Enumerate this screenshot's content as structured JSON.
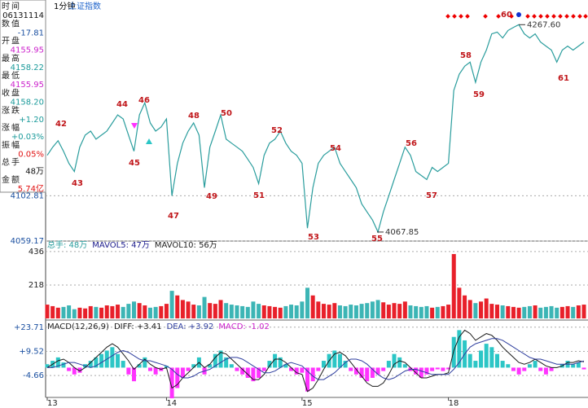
{
  "header": {
    "period": "1分钟",
    "symbol": "上证指数"
  },
  "info_panel": {
    "rows": [
      {
        "label": "时间",
        "value": "06131114"
      },
      {
        "label": "数值",
        "value": "-17.81"
      },
      {
        "label": "开盘",
        "value": "4155.95"
      },
      {
        "label": "最高",
        "value": "4158.22"
      },
      {
        "label": "最低",
        "value": "4155.95"
      },
      {
        "label": "收盘",
        "value": "4158.20"
      },
      {
        "label": "涨跌",
        "value": "+1.20"
      },
      {
        "label": "涨幅",
        "value": "+0.03%"
      },
      {
        "label": "振幅",
        "value": "0.05%"
      },
      {
        "label": "总手",
        "value": "48万"
      },
      {
        "label": "金额",
        "value": "5.74亿"
      }
    ]
  },
  "chart_data": [
    {
      "type": "line",
      "color": "#2a9d9d",
      "values": [
        4141.8,
        4149.6,
        4155.8,
        4145.7,
        4134.0,
        4126.2,
        4149.6,
        4161.2,
        4165.1,
        4157.3,
        4161.2,
        4165.1,
        4172.9,
        4180.7,
        4176.8,
        4161.2,
        4145.7,
        4180.7,
        4192.4,
        4172.9,
        4165.1,
        4169.0,
        4176.8,
        4102.8,
        4134.0,
        4153.5,
        4165.1,
        4172.9,
        4161.2,
        4110.6,
        4149.6,
        4165.1,
        4180.7,
        4157.3,
        4153.5,
        4149.6,
        4145.7,
        4137.9,
        4130.1,
        4114.5,
        4141.8,
        4153.5,
        4157.3,
        4165.1,
        4153.5,
        4145.7,
        4141.8,
        4134.0,
        4071.6,
        4110.6,
        4134.0,
        4141.8,
        4145.7,
        4149.6,
        4134.0,
        4126.2,
        4118.4,
        4110.6,
        4095.0,
        4087.2,
        4079.4,
        4067.85,
        4087.2,
        4102.8,
        4118.4,
        4134.0,
        4149.6,
        4141.8,
        4126.2,
        4122.3,
        4118.4,
        4130.1,
        4126.2,
        4130.1,
        4134.0,
        4204.2,
        4219.8,
        4227.6,
        4231.5,
        4212.0,
        4231.5,
        4243.1,
        4258.7,
        4260.5,
        4254.8,
        4262.0,
        4265.0,
        4267.6,
        4258.7,
        4254.8,
        4258.7,
        4250.9,
        4247.0,
        4243.1,
        4231.5,
        4243.1,
        4247.0,
        4243.1,
        4247.0,
        4250.9
      ],
      "annotations": [
        "42",
        "43",
        "44",
        "45",
        "46",
        "47",
        "48",
        "49",
        "50",
        "51",
        "52",
        "53",
        "54",
        "55",
        "56",
        "57",
        "58",
        "59",
        "60",
        "61"
      ],
      "extremes": [
        {
          "value": 4267.6,
          "label": "4267.60"
        },
        4067.85
      ],
      "ylim": [
        4059.17,
        4289.8
      ],
      "yticks": [
        4102.81,
        4059.17
      ],
      "xlim": [
        0,
        99
      ],
      "grid": true
    },
    {
      "type": "bar",
      "up_color": "#e8202a",
      "down_color": "#3cb5b5",
      "legend": [
        "总手: 48万",
        "MAVOL5: 47万",
        "MAVOL10: 56万"
      ],
      "values": [
        90,
        80,
        70,
        75,
        85,
        60,
        70,
        65,
        80,
        75,
        70,
        85,
        80,
        90,
        75,
        95,
        110,
        100,
        85,
        70,
        75,
        80,
        95,
        180,
        150,
        120,
        110,
        90,
        85,
        140,
        100,
        95,
        120,
        100,
        90,
        85,
        80,
        75,
        110,
        95,
        85,
        80,
        75,
        70,
        80,
        90,
        85,
        110,
        200,
        150,
        110,
        95,
        90,
        100,
        85,
        80,
        90,
        85,
        95,
        100,
        110,
        120,
        105,
        90,
        100,
        95,
        110,
        85,
        80,
        75,
        80,
        70,
        75,
        80,
        90,
        420,
        200,
        150,
        120,
        100,
        110,
        130,
        95,
        90,
        85,
        80,
        75,
        70,
        75,
        80,
        85,
        70,
        75,
        80,
        70,
        75,
        80,
        75,
        85,
        90
      ],
      "ylim": [
        0,
        494
      ],
      "yticks": [
        436,
        218
      ],
      "xlim": [
        0,
        99
      ],
      "grid": true
    },
    {
      "type": "macd",
      "title": "MACD(12,26,9)",
      "legend": [
        "DIFF: +3.41",
        "DEA: +3.92",
        "MACD: -1.02"
      ],
      "pos_color": "#2cc6c6",
      "neg_color": "#ff33ff",
      "series": [
        {
          "color": "#2cc6c6",
          "values": [
            2,
            4,
            6,
            3,
            -2,
            -4,
            -3,
            2,
            4,
            6,
            8,
            10,
            12,
            8,
            4,
            -4,
            -8,
            2,
            6,
            -2,
            -4,
            -2,
            1,
            -18,
            -12,
            -6,
            -2,
            2,
            6,
            -4,
            2,
            8,
            10,
            6,
            2,
            -2,
            -4,
            -6,
            -8,
            -6,
            -2,
            4,
            8,
            6,
            2,
            -2,
            -4,
            -3,
            -14,
            -8,
            -2,
            4,
            8,
            10,
            8,
            4,
            -2,
            -4,
            -6,
            -8,
            -6,
            -4,
            -2,
            4,
            8,
            6,
            2,
            -2,
            -4,
            -6,
            -4,
            -2,
            -1,
            -2,
            -1,
            18,
            22,
            16,
            8,
            4,
            10,
            14,
            12,
            8,
            4,
            2,
            -2,
            -4,
            -2,
            2,
            4,
            -2,
            -4,
            -2,
            0,
            2,
            4,
            2,
            3,
            -1.02
          ]
        },
        {
          "color": "#1a1a1a",
          "values": [
            0,
            2,
            4,
            5,
            3,
            0,
            -2,
            0,
            3,
            6,
            9,
            12,
            14,
            12,
            8,
            4,
            -1,
            2,
            5,
            2,
            0,
            -1,
            0,
            -12,
            -10,
            -6,
            -3,
            0,
            3,
            0,
            2,
            6,
            9,
            8,
            5,
            2,
            -1,
            -4,
            -7,
            -7,
            -4,
            1,
            5,
            5,
            3,
            0,
            -3,
            -4,
            -14,
            -12,
            -7,
            -1,
            4,
            8,
            9,
            7,
            3,
            -1,
            -5,
            -9,
            -11,
            -11,
            -9,
            -4,
            2,
            4,
            3,
            0,
            -3,
            -6,
            -6,
            -5,
            -4,
            -4,
            -3,
            10,
            18,
            22,
            20,
            16,
            18,
            20,
            19,
            16,
            12,
            9,
            6,
            3,
            2,
            3,
            5,
            3,
            1,
            0,
            0,
            1,
            3,
            3,
            4,
            3.41
          ]
        },
        {
          "color": "#2f3f9f",
          "values": [
            0,
            0,
            1,
            2,
            3,
            3,
            2,
            1,
            0,
            1,
            3,
            5,
            7,
            9,
            10,
            9,
            7,
            5,
            4,
            4,
            3,
            2,
            1,
            -1,
            -4,
            -6,
            -6,
            -5,
            -3,
            -2,
            -1,
            1,
            3,
            5,
            6,
            6,
            5,
            3,
            1,
            -1,
            -3,
            -3,
            -2,
            0,
            2,
            3,
            2,
            1,
            -2,
            -5,
            -7,
            -7,
            -5,
            -3,
            0,
            3,
            5,
            5,
            4,
            2,
            -1,
            -4,
            -6,
            -7,
            -6,
            -4,
            -2,
            -1,
            -1,
            -2,
            -3,
            -4,
            -4,
            -4,
            -4,
            -1,
            3,
            8,
            12,
            14,
            15,
            16,
            17,
            17,
            16,
            14,
            12,
            10,
            8,
            6,
            5,
            5,
            4,
            3,
            2,
            2,
            2,
            2,
            3,
            3.92
          ]
        }
      ],
      "ylim": [
        -17,
        26
      ],
      "yticks": [
        {
          "value": 23.71,
          "label": "+23.71"
        },
        {
          "value": 9.52,
          "label": "+9.52"
        },
        -4.66
      ],
      "xlim": [
        0,
        99
      ],
      "xticks": [
        {
          "value": 0,
          "label": "13"
        },
        {
          "value": 22,
          "label": "14"
        },
        {
          "value": 47,
          "label": "15"
        },
        {
          "value": 74,
          "label": "18"
        }
      ],
      "grid": true
    }
  ]
}
